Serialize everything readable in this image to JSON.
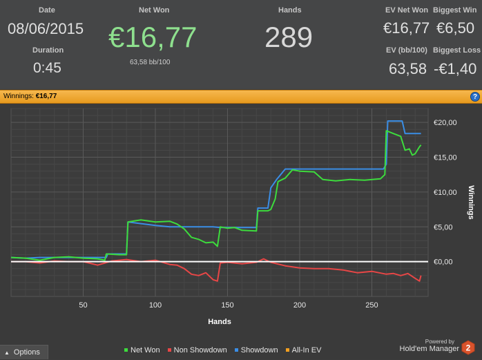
{
  "stats": {
    "date_label": "Date",
    "date_value": "08/06/2015",
    "duration_label": "Duration",
    "duration_value": "0:45",
    "net_won_label": "Net Won",
    "net_won_value": "€16,77",
    "net_won_sub": "63,58 bb/100",
    "hands_label": "Hands",
    "hands_value": "289",
    "ev_net_won_label": "EV Net Won",
    "ev_net_won_value": "€16,77",
    "biggest_win_label": "Biggest Win",
    "biggest_win_value": "€6,50",
    "ev_bb_label": "EV (bb/100)",
    "ev_bb_value": "63,58",
    "biggest_loss_label": "Biggest Loss",
    "biggest_loss_value": "-€1,40"
  },
  "panel": {
    "title_prefix": "Winnings: ",
    "title_value": "€16,77",
    "help_icon": "help-icon"
  },
  "footer": {
    "options_label": "Options",
    "powered_by": "Powered by",
    "brand": "Hold'em Manager",
    "logo_number": "2"
  },
  "colors": {
    "net_won": "#3ddc3d",
    "non_showdown": "#e84646",
    "showdown": "#3a8ee6",
    "all_in_ev": "#f5a020",
    "zero_line": "#ffffff",
    "accent_green": "#8ee08e"
  },
  "chart_data": {
    "type": "line",
    "xlabel": "Hands",
    "ylabel": "Winnings",
    "xlim": [
      0,
      289
    ],
    "ylim": [
      -5,
      22
    ],
    "x_ticks": [
      50,
      100,
      150,
      200,
      250
    ],
    "y_ticks": [
      0,
      5,
      10,
      15,
      20
    ],
    "y_tick_labels": [
      "€0,00",
      "€5,00",
      "€10,00",
      "€15,00",
      "€20,00"
    ],
    "grid": true,
    "legend": [
      "Net Won",
      "Non Showdown",
      "Showdown",
      "All-In EV"
    ],
    "legend_position": "bottom",
    "series": [
      {
        "name": "Net Won",
        "color": "#3ddc3d",
        "points": [
          [
            0,
            0.6
          ],
          [
            10,
            0.5
          ],
          [
            20,
            0.2
          ],
          [
            30,
            0.6
          ],
          [
            40,
            0.7
          ],
          [
            50,
            0.5
          ],
          [
            60,
            0.4
          ],
          [
            65,
            0.2
          ],
          [
            66,
            1.1
          ],
          [
            75,
            1.0
          ],
          [
            80,
            1.0
          ],
          [
            81,
            5.7
          ],
          [
            90,
            6.0
          ],
          [
            100,
            5.7
          ],
          [
            110,
            5.8
          ],
          [
            115,
            5.4
          ],
          [
            120,
            4.7
          ],
          [
            125,
            3.5
          ],
          [
            130,
            3.2
          ],
          [
            135,
            2.7
          ],
          [
            140,
            2.8
          ],
          [
            143,
            2.2
          ],
          [
            145,
            5.0
          ],
          [
            150,
            4.8
          ],
          [
            155,
            4.9
          ],
          [
            160,
            4.5
          ],
          [
            170,
            4.4
          ],
          [
            171,
            7.3
          ],
          [
            178,
            7.3
          ],
          [
            180,
            7.5
          ],
          [
            183,
            9.0
          ],
          [
            185,
            11.5
          ],
          [
            190,
            12.0
          ],
          [
            195,
            13.2
          ],
          [
            200,
            13.0
          ],
          [
            210,
            12.9
          ],
          [
            216,
            11.8
          ],
          [
            225,
            11.6
          ],
          [
            235,
            11.8
          ],
          [
            245,
            11.7
          ],
          [
            256,
            11.9
          ],
          [
            259,
            12.5
          ],
          [
            260,
            18.8
          ],
          [
            265,
            18.4
          ],
          [
            270,
            18.0
          ],
          [
            273,
            16.0
          ],
          [
            276,
            16.2
          ],
          [
            278,
            15.3
          ],
          [
            280,
            15.5
          ],
          [
            283,
            16.5
          ],
          [
            284,
            16.77
          ]
        ]
      },
      {
        "name": "Showdown",
        "color": "#3a8ee6",
        "points": [
          [
            0,
            0.6
          ],
          [
            10,
            0.5
          ],
          [
            20,
            0.6
          ],
          [
            30,
            0.6
          ],
          [
            40,
            0.6
          ],
          [
            50,
            0.6
          ],
          [
            60,
            0.6
          ],
          [
            66,
            0.6
          ],
          [
            67,
            1.1
          ],
          [
            80,
            1.1
          ],
          [
            81,
            5.7
          ],
          [
            100,
            5.2
          ],
          [
            110,
            5.0
          ],
          [
            120,
            5.0
          ],
          [
            140,
            5.0
          ],
          [
            145,
            4.9
          ],
          [
            170,
            4.9
          ],
          [
            171,
            7.7
          ],
          [
            178,
            7.7
          ],
          [
            180,
            10.6
          ],
          [
            184,
            11.8
          ],
          [
            190,
            13.3
          ],
          [
            200,
            13.3
          ],
          [
            220,
            13.3
          ],
          [
            250,
            13.3
          ],
          [
            258,
            13.3
          ],
          [
            260,
            14.0
          ],
          [
            261,
            20.2
          ],
          [
            271,
            20.2
          ],
          [
            273,
            18.4
          ],
          [
            284,
            18.4
          ]
        ]
      },
      {
        "name": "Non Showdown",
        "color": "#e84646",
        "points": [
          [
            0,
            0.0
          ],
          [
            10,
            0.0
          ],
          [
            20,
            -0.2
          ],
          [
            30,
            0.1
          ],
          [
            40,
            0.0
          ],
          [
            50,
            0.0
          ],
          [
            60,
            -0.5
          ],
          [
            70,
            0.1
          ],
          [
            80,
            0.3
          ],
          [
            90,
            0.0
          ],
          [
            100,
            0.2
          ],
          [
            110,
            -0.4
          ],
          [
            115,
            -0.5
          ],
          [
            120,
            -1.0
          ],
          [
            125,
            -1.8
          ],
          [
            130,
            -2.0
          ],
          [
            135,
            -1.6
          ],
          [
            140,
            -2.6
          ],
          [
            143,
            -2.8
          ],
          [
            145,
            -0.2
          ],
          [
            150,
            -0.1
          ],
          [
            160,
            -0.3
          ],
          [
            170,
            -0.1
          ],
          [
            175,
            0.4
          ],
          [
            180,
            -0.1
          ],
          [
            190,
            -0.6
          ],
          [
            200,
            -0.9
          ],
          [
            210,
            -1.0
          ],
          [
            220,
            -1.0
          ],
          [
            230,
            -1.2
          ],
          [
            240,
            -1.6
          ],
          [
            250,
            -1.4
          ],
          [
            260,
            -1.8
          ],
          [
            265,
            -1.7
          ],
          [
            270,
            -2.0
          ],
          [
            275,
            -1.7
          ],
          [
            280,
            -2.4
          ],
          [
            283,
            -2.8
          ],
          [
            284,
            -2.0
          ]
        ]
      },
      {
        "name": "All-In EV",
        "color": "#f5a020",
        "points": []
      }
    ]
  }
}
